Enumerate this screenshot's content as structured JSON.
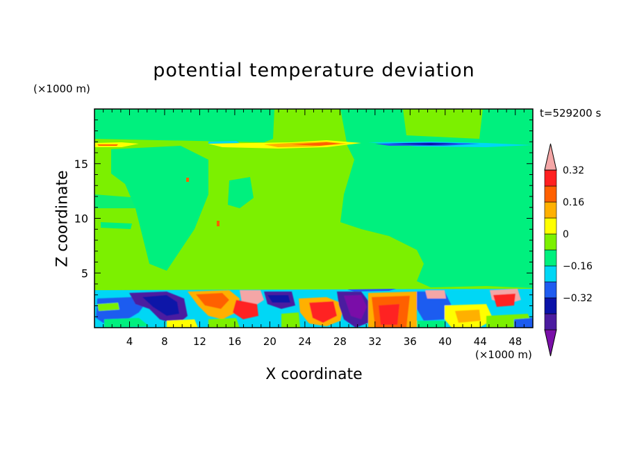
{
  "chart_data": {
    "type": "heatmap",
    "title": "potential temperature deviation",
    "xlabel": "X coordinate",
    "ylabel": "Z coordinate",
    "x_multiplier": "(×1000 m)",
    "y_multiplier": "(×1000 m)",
    "time_label": "t=529200 s",
    "xlim": [
      0,
      50
    ],
    "ylim": [
      0,
      20
    ],
    "x_ticks": [
      4,
      8,
      12,
      16,
      20,
      24,
      28,
      32,
      36,
      40,
      44,
      48
    ],
    "y_ticks": [
      5,
      10,
      15
    ],
    "colorbar": {
      "levels": [
        -0.48,
        -0.4,
        -0.32,
        -0.24,
        -0.16,
        -0.08,
        0,
        0.08,
        0.16,
        0.24,
        0.32,
        0.4
      ],
      "labels": [
        "0.32",
        "0.16",
        "0",
        "−0.16",
        "−0.32"
      ],
      "label_values": [
        0.32,
        0.16,
        0,
        -0.16,
        -0.32
      ],
      "colors": [
        "#7a0fa8",
        "#4b1ca0",
        "#0a12a8",
        "#1f5cf0",
        "#00d7f5",
        "#00f07e",
        "#7cf000",
        "#ffff00",
        "#ffb000",
        "#ff6000",
        "#ff2020",
        "#f4a6a6"
      ],
      "extend": "both"
    },
    "field_description": "background near-zero field, mixed positive/negative cells in boundary layer below z≈3.5 km, thin anomaly layer near z≈16.5 km",
    "fill_colors": {
      "near_zero_positive": "#7cf000",
      "near_zero_negative": "#00f07e"
    }
  }
}
